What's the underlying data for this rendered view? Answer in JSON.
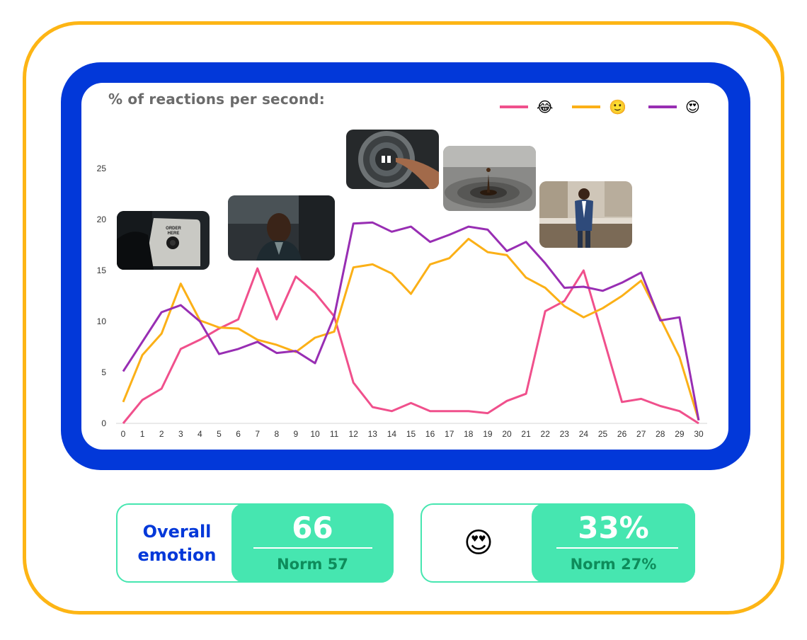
{
  "chart": {
    "title": "% of reactions per second:"
  },
  "chart_data": {
    "type": "line",
    "title": "% of reactions per second:",
    "x": [
      0,
      1,
      2,
      3,
      4,
      5,
      6,
      7,
      8,
      9,
      10,
      11,
      12,
      13,
      14,
      15,
      16,
      17,
      18,
      19,
      20,
      21,
      22,
      23,
      24,
      25,
      26,
      27,
      28,
      29,
      30
    ],
    "ylim": [
      0,
      25
    ],
    "yticks": [
      0,
      5,
      10,
      15,
      20,
      25
    ],
    "grid": false,
    "legend_position": "top-right",
    "series": [
      {
        "name": "😂",
        "color": "#F0508C",
        "values": [
          0,
          2.3,
          3.4,
          7.3,
          8.2,
          9.3,
          10.2,
          15.2,
          10.2,
          14.4,
          12.8,
          10.5,
          4,
          1.6,
          1.2,
          2,
          1.2,
          1.2,
          1.2,
          1,
          2.2,
          2.9,
          11,
          12,
          15,
          8.6,
          2.1,
          2.4,
          1.7,
          1.2,
          0
        ]
      },
      {
        "name": "🙂",
        "color": "#FBB017",
        "values": [
          2.1,
          6.7,
          8.8,
          13.7,
          10.1,
          9.4,
          9.3,
          8.2,
          7.7,
          7.0,
          8.4,
          9.0,
          15.3,
          15.6,
          14.7,
          12.7,
          15.6,
          16.2,
          18.1,
          16.8,
          16.5,
          14.3,
          13.3,
          11.5,
          10.4,
          11.3,
          12.5,
          14.0,
          10.3,
          6.5,
          0.3
        ]
      },
      {
        "name": "😍",
        "color": "#982EB3",
        "values": [
          5.1,
          8.0,
          10.9,
          11.6,
          10.0,
          6.8,
          7.3,
          8.0,
          6.9,
          7.1,
          5.9,
          10.5,
          19.6,
          19.7,
          18.8,
          19.3,
          17.8,
          18.5,
          19.3,
          19.0,
          16.9,
          17.8,
          15.7,
          13.3,
          13.4,
          13.0,
          13.8,
          14.8,
          10.1,
          10.4,
          0.3
        ]
      }
    ]
  },
  "thumbnails": [
    {
      "name": "order-here-drive-thru",
      "at_x": 2.5
    },
    {
      "name": "man-in-car",
      "at_x": 9.5
    },
    {
      "name": "dial-knob",
      "at_x": 13.5
    },
    {
      "name": "water-drop",
      "at_x": 18.5
    },
    {
      "name": "man-in-kitchen",
      "at_x": 24.5
    }
  ],
  "cards": [
    {
      "label_line1": "Overall",
      "label_line2": "emotion",
      "value": "66",
      "norm": "Norm 57"
    },
    {
      "emoji": "😍",
      "value": "33%",
      "norm": "Norm 27%"
    }
  ],
  "colors": {
    "frame": "#FDB515",
    "panel": "#0238D9",
    "accent_green": "#46E6B0",
    "norm_text": "#0E8C5B"
  }
}
